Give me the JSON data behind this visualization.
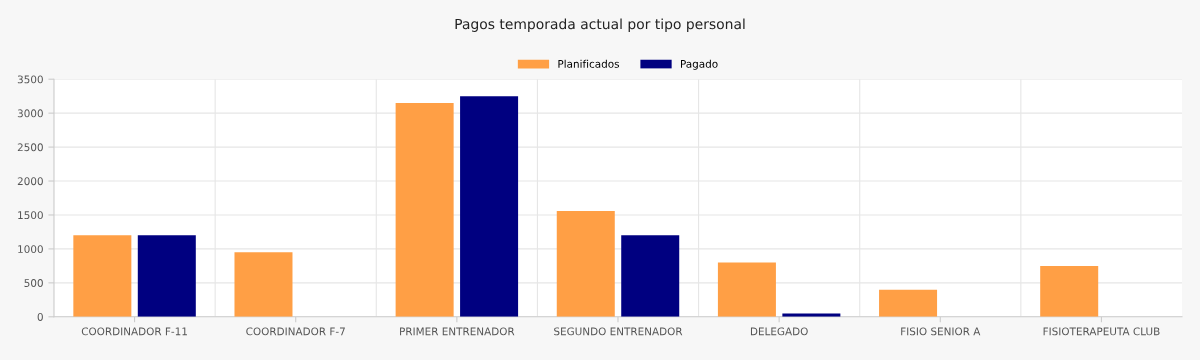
{
  "chart_data": {
    "type": "bar",
    "title": "Pagos temporada actual por tipo personal",
    "categories": [
      "COORDINADOR F-11",
      "COORDINADOR F-7",
      "PRIMER ENTRENADOR",
      "SEGUNDO ENTRENADOR",
      "DELEGADO",
      "FISIO SENIOR A",
      "FISIOTERAPEUTA CLUB"
    ],
    "series": [
      {
        "name": "Planificados",
        "color": "#ff9f45",
        "values": [
          1200,
          950,
          3150,
          1560,
          800,
          400,
          750
        ]
      },
      {
        "name": "Pagado",
        "color": "#000080",
        "values": [
          1200,
          0,
          3250,
          1200,
          50,
          0,
          0
        ]
      }
    ],
    "ylim": [
      0,
      3500
    ],
    "yticks": [
      0,
      500,
      1000,
      1500,
      2000,
      2500,
      3000,
      3500
    ],
    "grid": true,
    "legend": "top"
  }
}
